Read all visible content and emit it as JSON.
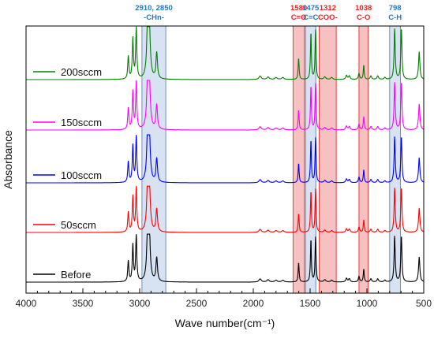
{
  "chart_data": {
    "type": "line",
    "xlabel": "Wave number(cm⁻¹)",
    "ylabel": "Absorbance",
    "xlim": [
      4000,
      500
    ],
    "x_reversed": true,
    "xticks": [
      4000,
      3500,
      3000,
      2500,
      2000,
      1500,
      1000,
      500
    ],
    "grid": false,
    "legend_placement": "inline-left",
    "peaks": [
      {
        "x": 3100,
        "h": 0.45,
        "w": 6
      },
      {
        "x": 3060,
        "h": 0.8,
        "w": 6
      },
      {
        "x": 3030,
        "h": 1.0,
        "w": 6
      },
      {
        "x": 2930,
        "h": 0.98,
        "w": 10
      },
      {
        "x": 2915,
        "h": 0.95,
        "w": 10
      },
      {
        "x": 2850,
        "h": 0.52,
        "w": 8
      },
      {
        "x": 1940,
        "h": 0.07,
        "w": 12
      },
      {
        "x": 1870,
        "h": 0.05,
        "w": 12
      },
      {
        "x": 1800,
        "h": 0.04,
        "w": 12
      },
      {
        "x": 1740,
        "h": 0.04,
        "w": 12
      },
      {
        "x": 1601,
        "h": 0.42,
        "w": 5
      },
      {
        "x": 1493,
        "h": 0.92,
        "w": 5
      },
      {
        "x": 1452,
        "h": 0.98,
        "w": 5
      },
      {
        "x": 1370,
        "h": 0.05,
        "w": 10
      },
      {
        "x": 1310,
        "h": 0.04,
        "w": 10
      },
      {
        "x": 1180,
        "h": 0.08,
        "w": 8
      },
      {
        "x": 1155,
        "h": 0.07,
        "w": 8
      },
      {
        "x": 1070,
        "h": 0.12,
        "w": 7
      },
      {
        "x": 1028,
        "h": 0.28,
        "w": 5
      },
      {
        "x": 965,
        "h": 0.07,
        "w": 8
      },
      {
        "x": 905,
        "h": 0.07,
        "w": 8
      },
      {
        "x": 842,
        "h": 0.04,
        "w": 8
      },
      {
        "x": 756,
        "h": 1.0,
        "w": 6
      },
      {
        "x": 697,
        "h": 1.0,
        "w": 6
      },
      {
        "x": 540,
        "h": 0.55,
        "w": 7
      }
    ],
    "series": [
      {
        "name": "Before",
        "color": "#000000"
      },
      {
        "name": "50sccm",
        "color": "#ff0000"
      },
      {
        "name": "100sccm",
        "color": "#0000ff"
      },
      {
        "name": "150sccm",
        "color": "#ff00ff"
      },
      {
        "name": "200sccm",
        "color": "#008000"
      }
    ],
    "bands": [
      {
        "from": 2980,
        "to": 2770,
        "color": "blue",
        "label1": "2910, 2850",
        "label2": "-CHn-"
      },
      {
        "from": 1650,
        "to": 1550,
        "color": "red",
        "label1": "1580",
        "label2": "C=O"
      },
      {
        "from": 1540,
        "to": 1450,
        "color": "blue",
        "label1": "1475",
        "label2": "C=C"
      },
      {
        "from": 1420,
        "to": 1270,
        "color": "red",
        "label1": "1312",
        "label2": "COO-"
      },
      {
        "from": 1070,
        "to": 990,
        "color": "red",
        "label1": "1038",
        "label2": "C-O"
      },
      {
        "from": 800,
        "to": 705,
        "color": "blue",
        "label1": "798",
        "label2": "C-H"
      }
    ],
    "band_colors": {
      "blue": "#c9d8ee",
      "red": "#f5a6a6",
      "blue_label": "#1f78c8",
      "red_label": "#ff1a1a"
    }
  }
}
